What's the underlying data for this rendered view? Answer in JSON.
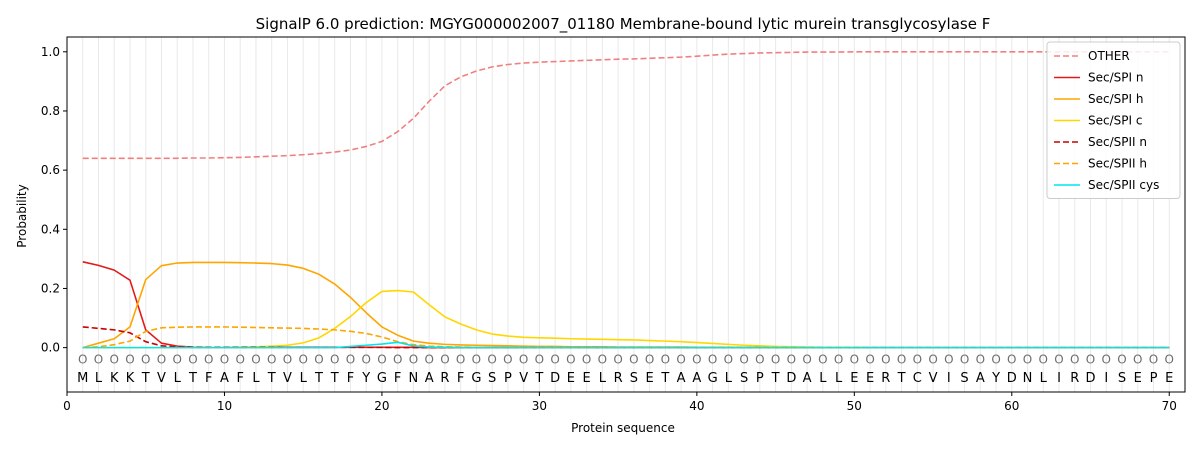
{
  "chart_data": {
    "type": "line",
    "title": "SignalP 6.0 prediction: MGYG000002007_01180 Membrane-bound lytic murein transglycosylase F",
    "xlabel": "Protein sequence",
    "ylabel": "Probability",
    "xlim": [
      0,
      71
    ],
    "ylim": [
      -0.15,
      1.05
    ],
    "xticks": [
      0,
      10,
      20,
      30,
      40,
      50,
      60,
      70
    ],
    "yticks": [
      0.0,
      0.2,
      0.4,
      0.6,
      0.8,
      1.0
    ],
    "xtick_labels": [
      "0",
      "10",
      "20",
      "30",
      "40",
      "50",
      "60",
      "70"
    ],
    "ytick_labels": [
      "0.0",
      "0.2",
      "0.4",
      "0.6",
      "0.8",
      "1.0"
    ],
    "grid": "vertical lines at each residue",
    "legend_position": "top-right",
    "sequence": [
      "M",
      "L",
      "K",
      "K",
      "T",
      "V",
      "L",
      "T",
      "F",
      "A",
      "F",
      "L",
      "T",
      "V",
      "L",
      "T",
      "T",
      "F",
      "Y",
      "G",
      "F",
      "N",
      "A",
      "R",
      "F",
      "G",
      "S",
      "P",
      "V",
      "T",
      "D",
      "E",
      "E",
      "L",
      "R",
      "S",
      "E",
      "T",
      "A",
      "A",
      "G",
      "L",
      "S",
      "P",
      "T",
      "D",
      "A",
      "L",
      "L",
      "E",
      "E",
      "R",
      "T",
      "C",
      "V",
      "I",
      "S",
      "A",
      "Y",
      "D",
      "N",
      "L",
      "I",
      "R",
      "D",
      "I",
      "S",
      "E",
      "P",
      "E"
    ],
    "residue_marker": "O",
    "series": [
      {
        "name": "OTHER",
        "color": "#f08080",
        "dash": true,
        "values": [
          0.64,
          0.64,
          0.64,
          0.64,
          0.64,
          0.64,
          0.64,
          0.641,
          0.641,
          0.642,
          0.643,
          0.645,
          0.647,
          0.649,
          0.652,
          0.656,
          0.661,
          0.668,
          0.68,
          0.697,
          0.73,
          0.775,
          0.833,
          0.885,
          0.915,
          0.935,
          0.949,
          0.957,
          0.962,
          0.965,
          0.967,
          0.969,
          0.971,
          0.973,
          0.975,
          0.976,
          0.978,
          0.98,
          0.982,
          0.985,
          0.989,
          0.992,
          0.994,
          0.996,
          0.997,
          0.998,
          0.999,
          0.999,
          0.999,
          1.0,
          1.0,
          1.0,
          1.0,
          1.0,
          1.0,
          1.0,
          1.0,
          1.0,
          1.0,
          1.0,
          1.0,
          1.0,
          1.0,
          1.0,
          1.0,
          1.0,
          1.0,
          1.0,
          1.0,
          1.0
        ]
      },
      {
        "name": "Sec/SPI n",
        "color": "#e31a1c",
        "dash": false,
        "values": [
          0.29,
          0.278,
          0.262,
          0.228,
          0.06,
          0.015,
          0.005,
          0.002,
          0.001,
          0.001,
          0.001,
          0.001,
          0.001,
          0.001,
          0.001,
          0.001,
          0.001,
          0.001,
          0.001,
          0.001,
          0.001,
          0.001,
          0,
          0,
          0,
          0,
          0,
          0,
          0,
          0,
          0,
          0,
          0,
          0,
          0,
          0,
          0,
          0,
          0,
          0,
          0,
          0,
          0,
          0,
          0,
          0,
          0,
          0,
          0,
          0,
          0,
          0,
          0,
          0,
          0,
          0,
          0,
          0,
          0,
          0,
          0,
          0,
          0,
          0,
          0,
          0,
          0,
          0,
          0,
          0
        ]
      },
      {
        "name": "Sec/SPI h",
        "color": "#ffa500",
        "dash": false,
        "values": [
          0.0,
          0.015,
          0.03,
          0.07,
          0.23,
          0.277,
          0.286,
          0.288,
          0.288,
          0.288,
          0.287,
          0.286,
          0.284,
          0.279,
          0.268,
          0.248,
          0.215,
          0.17,
          0.118,
          0.07,
          0.042,
          0.022,
          0.015,
          0.011,
          0.009,
          0.008,
          0.007,
          0.006,
          0.005,
          0.004,
          0.004,
          0.003,
          0.003,
          0.003,
          0.002,
          0.002,
          0.002,
          0.002,
          0.002,
          0.001,
          0.001,
          0.001,
          0.001,
          0.001,
          0.001,
          0.001,
          0,
          0,
          0,
          0,
          0,
          0,
          0,
          0,
          0,
          0,
          0,
          0,
          0,
          0,
          0,
          0,
          0,
          0,
          0,
          0,
          0,
          0,
          0,
          0
        ]
      },
      {
        "name": "Sec/SPI c",
        "color": "#ffd700",
        "dash": false,
        "values": [
          0.0,
          0.0,
          0.0,
          0.0,
          0.0,
          0.0,
          0.0,
          0.001,
          0.001,
          0.001,
          0.002,
          0.003,
          0.005,
          0.008,
          0.016,
          0.033,
          0.065,
          0.105,
          0.152,
          0.19,
          0.193,
          0.188,
          0.145,
          0.104,
          0.08,
          0.06,
          0.046,
          0.039,
          0.035,
          0.033,
          0.032,
          0.03,
          0.029,
          0.028,
          0.027,
          0.026,
          0.024,
          0.022,
          0.02,
          0.017,
          0.014,
          0.011,
          0.008,
          0.006,
          0.004,
          0.003,
          0.002,
          0.001,
          0.001,
          0.001,
          0,
          0,
          0,
          0,
          0,
          0,
          0,
          0,
          0,
          0,
          0,
          0,
          0,
          0,
          0,
          0,
          0,
          0,
          0,
          0
        ]
      },
      {
        "name": "Sec/SPII n",
        "color": "#cc0000",
        "dash": true,
        "values": [
          0.07,
          0.065,
          0.06,
          0.05,
          0.02,
          0.006,
          0.002,
          0.001,
          0.001,
          0.001,
          0.001,
          0.001,
          0.001,
          0.001,
          0.001,
          0.001,
          0.001,
          0.001,
          0.001,
          0.001,
          0,
          0,
          0,
          0,
          0,
          0,
          0,
          0,
          0,
          0,
          0,
          0,
          0,
          0,
          0,
          0,
          0,
          0,
          0,
          0,
          0,
          0,
          0,
          0,
          0,
          0,
          0,
          0,
          0,
          0,
          0,
          0,
          0,
          0,
          0,
          0,
          0,
          0,
          0,
          0,
          0,
          0,
          0,
          0,
          0,
          0,
          0,
          0,
          0,
          0
        ]
      },
      {
        "name": "Sec/SPII h",
        "color": "#ffa500",
        "dash": true,
        "values": [
          0.0,
          0.003,
          0.01,
          0.022,
          0.055,
          0.067,
          0.069,
          0.07,
          0.07,
          0.07,
          0.069,
          0.068,
          0.067,
          0.066,
          0.065,
          0.063,
          0.06,
          0.055,
          0.048,
          0.036,
          0.02,
          0.01,
          0.005,
          0.003,
          0.002,
          0.001,
          0.001,
          0.001,
          0,
          0,
          0,
          0,
          0,
          0,
          0,
          0,
          0,
          0,
          0,
          0,
          0,
          0,
          0,
          0,
          0,
          0,
          0,
          0,
          0,
          0,
          0,
          0,
          0,
          0,
          0,
          0,
          0,
          0,
          0,
          0,
          0,
          0,
          0,
          0,
          0,
          0,
          0,
          0,
          0,
          0
        ]
      },
      {
        "name": "Sec/SPII cys",
        "color": "#00e5ee",
        "dash": false,
        "values": [
          0,
          0,
          0,
          0,
          0,
          0,
          0,
          0,
          0,
          0,
          0,
          0,
          0,
          0,
          0,
          0,
          0,
          0.004,
          0.008,
          0.012,
          0.018,
          0.006,
          0.002,
          0.001,
          0,
          0,
          0,
          0,
          0,
          0,
          0,
          0,
          0,
          0,
          0,
          0,
          0,
          0,
          0,
          0,
          0,
          0,
          0,
          0,
          0,
          0,
          0,
          0,
          0,
          0,
          0,
          0,
          0,
          0,
          0,
          0,
          0,
          0,
          0,
          0,
          0,
          0,
          0,
          0,
          0,
          0,
          0,
          0,
          0,
          0
        ]
      }
    ]
  }
}
